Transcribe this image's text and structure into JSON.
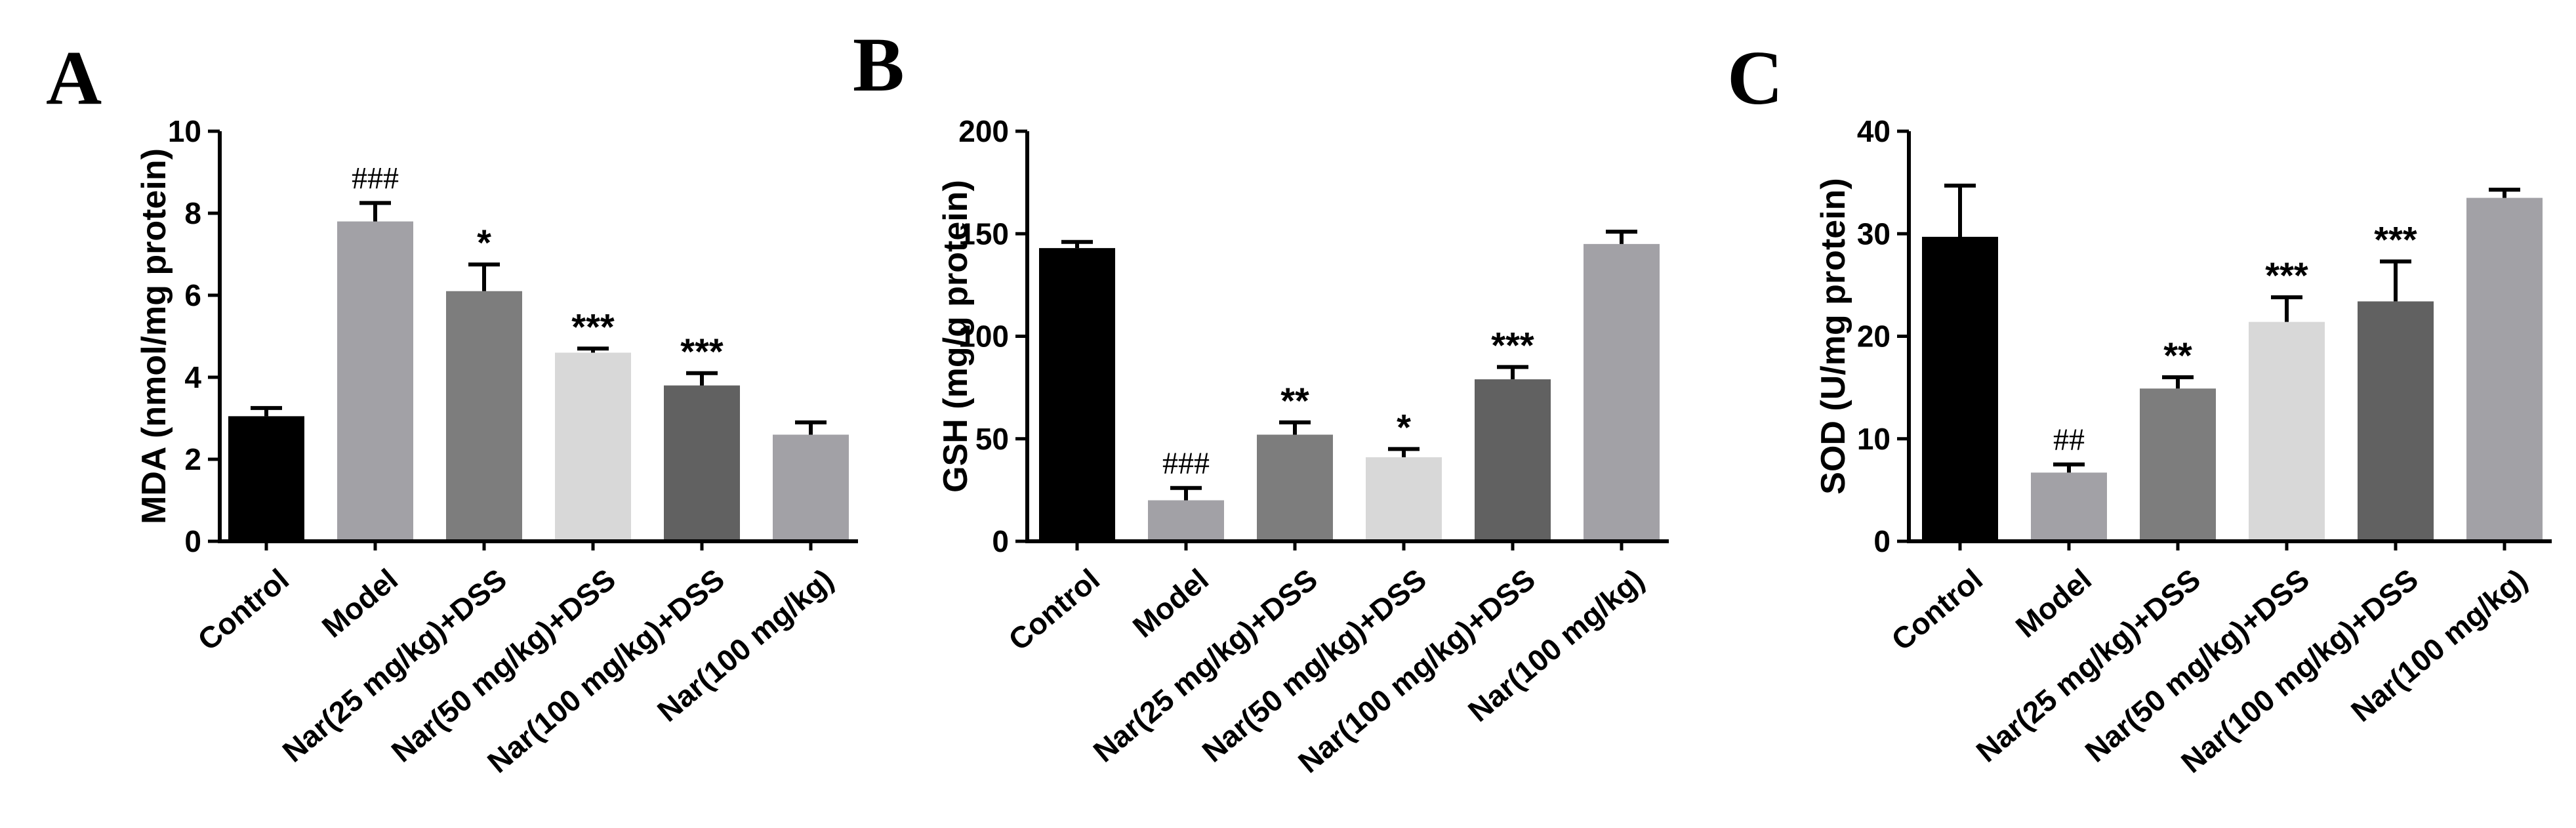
{
  "chart_data": [
    {
      "type": "bar",
      "panel": "A",
      "title": "",
      "xlabel": "",
      "ylabel": "MDA (nmol/mg protein)",
      "ylim": [
        0,
        10
      ],
      "yticks": [
        0,
        2,
        4,
        6,
        8,
        10
      ],
      "categories": [
        "Control",
        "Model",
        "Nar(25 mg/kg)+DSS",
        "Nar(50 mg/kg)+DSS",
        "Nar(100 mg/kg)+DSS",
        "Nar(100 mg/kg)"
      ],
      "values": [
        3.05,
        7.8,
        6.1,
        4.6,
        3.8,
        2.6
      ],
      "errors": [
        0.2,
        0.45,
        0.65,
        0.1,
        0.3,
        0.3
      ],
      "significance": [
        "",
        "###",
        "*",
        "***",
        "***",
        ""
      ],
      "colors": [
        "#000000",
        "#a2a1a6",
        "#7d7d7d",
        "#d8d8d8",
        "#616161",
        "#a2a1a6"
      ]
    },
    {
      "type": "bar",
      "panel": "B",
      "title": "",
      "xlabel": "",
      "ylabel": "GSH (mg/g protein)",
      "ylim": [
        0,
        200
      ],
      "yticks": [
        0,
        50,
        100,
        150,
        200
      ],
      "categories": [
        "Control",
        "Model",
        "Nar(25 mg/kg)+DSS",
        "Nar(50 mg/kg)+DSS",
        "Nar(100 mg/kg)+DSS",
        "Nar(100 mg/kg)"
      ],
      "values": [
        143,
        20,
        52,
        41,
        79,
        145
      ],
      "errors": [
        3,
        6,
        6,
        4,
        6,
        6
      ],
      "significance": [
        "",
        "###",
        "**",
        "*",
        "***",
        ""
      ],
      "colors": [
        "#000000",
        "#a2a1a6",
        "#7d7d7d",
        "#d8d8d8",
        "#616161",
        "#a2a1a6"
      ]
    },
    {
      "type": "bar",
      "panel": "C",
      "title": "",
      "xlabel": "",
      "ylabel": "SOD (U/mg protein)",
      "ylim": [
        0,
        40
      ],
      "yticks": [
        0,
        10,
        20,
        30,
        40
      ],
      "categories": [
        "Control",
        "Model",
        "Nar(25 mg/kg)+DSS",
        "Nar(50 mg/kg)+DSS",
        "Nar(100 mg/kg)+DSS",
        "Nar(100 mg/kg)"
      ],
      "values": [
        29.7,
        6.7,
        14.9,
        21.4,
        23.4,
        33.5
      ],
      "errors": [
        5.0,
        0.8,
        1.1,
        2.4,
        3.9,
        0.8
      ],
      "significance": [
        "",
        "##",
        "**",
        "***",
        "***",
        ""
      ],
      "colors": [
        "#000000",
        "#a2a1a6",
        "#7d7d7d",
        "#d8d8d8",
        "#616161",
        "#a2a1a6"
      ]
    }
  ]
}
